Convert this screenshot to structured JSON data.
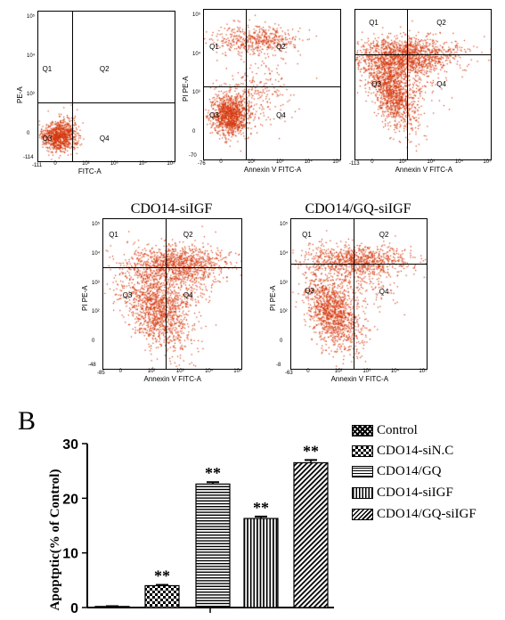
{
  "panelA": {
    "plots": [
      {
        "id": "control",
        "title": "",
        "ylabel": "PE-A",
        "xlabel": "FITC-A",
        "ymin": "-114",
        "xmin": "-111",
        "q1": "Q1",
        "q2": "Q2",
        "q3": "Q3",
        "q4": "Q4",
        "yticks": [
          "10⁵",
          "10⁴",
          "10³",
          "0"
        ],
        "xticks": [
          "0",
          "10²",
          "10³",
          "10⁴",
          "10⁵"
        ]
      },
      {
        "id": "siNC",
        "title": "",
        "ylabel": "PI PE-A",
        "xlabel": "Annexin V FITC-A",
        "ymin": "-70",
        "xmin": "-76",
        "q1": "Q1",
        "q2": "Q2",
        "q3": "Q3",
        "q4": "Q4",
        "yticks": [
          "10⁵",
          "10⁴",
          "10³",
          "0"
        ],
        "xticks": [
          "0",
          "10²",
          "10³",
          "10⁴",
          "10⁵"
        ]
      },
      {
        "id": "GQ",
        "title": "",
        "ylabel": "",
        "xlabel": "Annexin V FITC-A",
        "ymin": "",
        "xmin": "-113",
        "q1": "Q1",
        "q2": "Q2",
        "q3": "Q3",
        "q4": "Q4",
        "yticks": [],
        "xticks": [
          "0",
          "10²",
          "10³",
          "10⁴",
          "10⁵"
        ]
      },
      {
        "id": "siIGF",
        "title": "CDO14-siIGF",
        "ylabel": "PI PE-A",
        "xlabel": "Annexin V FITC-A",
        "ymin": "-48",
        "xmin": "-85",
        "q1": "Q1",
        "q2": "Q2",
        "q3": "Q3",
        "q4": "Q4",
        "yticks": [
          "10⁵",
          "10⁴",
          "10³",
          "10²",
          "0"
        ],
        "xticks": [
          "0",
          "10²",
          "10³",
          "10⁴",
          "10⁵"
        ]
      },
      {
        "id": "GQsiIGF",
        "title": "CDO14/GQ-siIGF",
        "ylabel": "PI PE-A",
        "xlabel": "Annexin V FITC-A",
        "ymin": "-8",
        "xmin": "-63",
        "q1": "Q1",
        "q2": "Q2",
        "q3": "Q3",
        "q4": "Q4",
        "yticks": [
          "10⁵",
          "10⁴",
          "10³",
          "10²",
          "0"
        ],
        "xticks": [
          "0",
          "10²",
          "10³",
          "10⁴",
          "10⁵"
        ]
      }
    ],
    "dot_color": "#d4380d"
  },
  "panelB": {
    "label": "B"
  },
  "chart_data": {
    "type": "bar",
    "title": "",
    "xlabel": "",
    "ylabel": "Apoptptic(% of Control)",
    "ylim": [
      0,
      30
    ],
    "yticks": [
      0,
      10,
      20,
      30
    ],
    "grid": false,
    "legend_position": "right",
    "categories": [
      "Control",
      "CDO14-siN.C",
      "CDO14/GQ",
      "CDO14-siIGF",
      "CDO14/GQ-siIGF"
    ],
    "values": [
      0.2,
      4.0,
      22.6,
      16.3,
      26.5
    ],
    "errors": [
      0.05,
      0.15,
      0.35,
      0.35,
      0.5
    ],
    "annotations": [
      "",
      "**",
      "**",
      "**",
      "**"
    ],
    "patterns": [
      "dense-check",
      "checker",
      "horizontal",
      "vertical",
      "diagonal"
    ]
  }
}
